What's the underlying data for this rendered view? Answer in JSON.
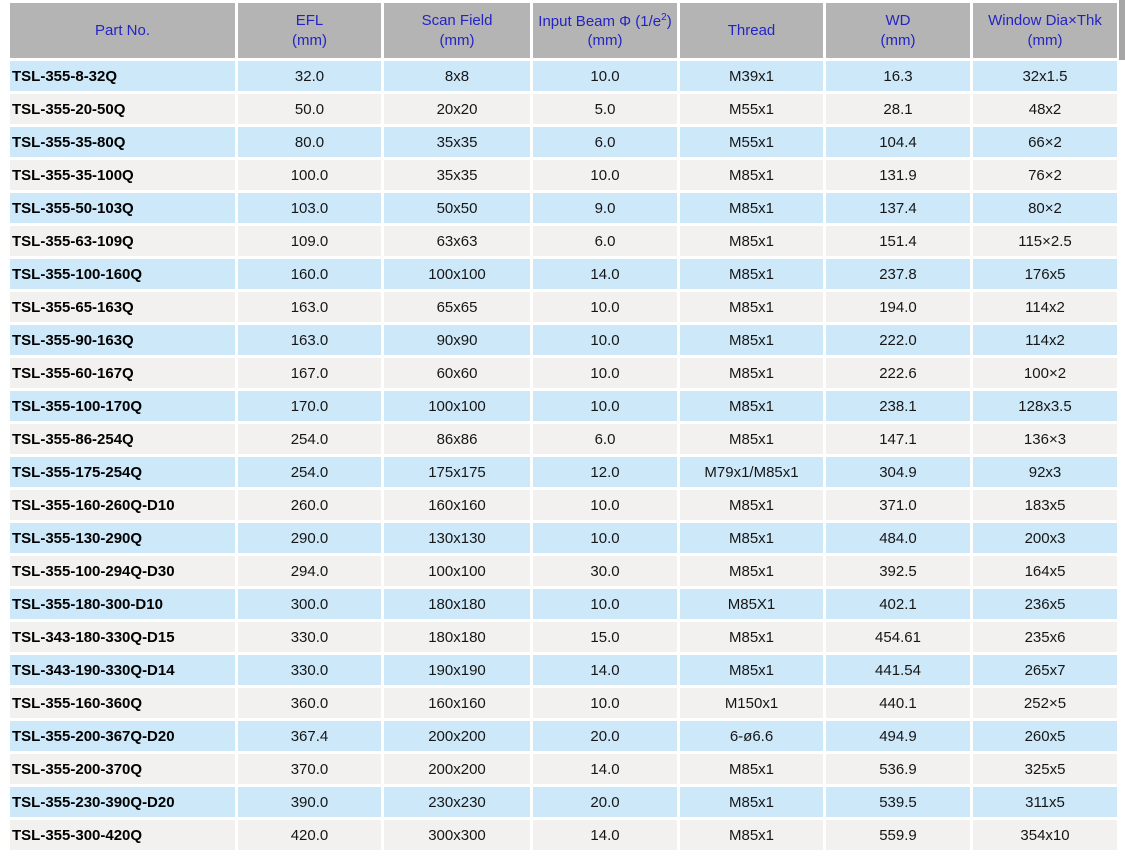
{
  "colors": {
    "header_bg": "#b4b4b4",
    "header_text": "#2424c4",
    "row_blue": "#cde8f9",
    "row_gray": "#f2f1ef",
    "body_text": "#161616",
    "page_bg": "#ffffff",
    "corner_block": "#a6a6a6"
  },
  "chart_data": {
    "type": "table",
    "title": "",
    "columns": [
      {
        "main": "Part No.",
        "sub": ""
      },
      {
        "main": "EFL",
        "sub": "(mm)"
      },
      {
        "main": "Scan Field",
        "sub": "(mm)"
      },
      {
        "main": "Input Beam Φ (1/e²)",
        "sub": "(mm)",
        "sup_split": {
          "pre": "Input Beam Φ (1/e",
          "sup": "2",
          "post": ")"
        }
      },
      {
        "main": "Thread",
        "sub": ""
      },
      {
        "main": "WD",
        "sub": "(mm)"
      },
      {
        "main": "Window Dia×Thk",
        "sub": "(mm)"
      }
    ],
    "rows": [
      {
        "part_no": "TSL-355-8-32Q",
        "efl": "32.0",
        "scan_field": "8x8",
        "input_beam": "10.0",
        "thread": "M39x1",
        "wd": "16.3",
        "window_dia_thk": "32x1.5"
      },
      {
        "part_no": "TSL-355-20-50Q",
        "efl": "50.0",
        "scan_field": "20x20",
        "input_beam": "5.0",
        "thread": "M55x1",
        "wd": "28.1",
        "window_dia_thk": "48x2"
      },
      {
        "part_no": "TSL-355-35-80Q",
        "efl": "80.0",
        "scan_field": "35x35",
        "input_beam": "6.0",
        "thread": "M55x1",
        "wd": "104.4",
        "window_dia_thk": "66×2"
      },
      {
        "part_no": "TSL-355-35-100Q",
        "efl": "100.0",
        "scan_field": "35x35",
        "input_beam": "10.0",
        "thread": "M85x1",
        "wd": "131.9",
        "window_dia_thk": "76×2"
      },
      {
        "part_no": "TSL-355-50-103Q",
        "efl": "103.0",
        "scan_field": "50x50",
        "input_beam": "9.0",
        "thread": "M85x1",
        "wd": "137.4",
        "window_dia_thk": "80×2"
      },
      {
        "part_no": "TSL-355-63-109Q",
        "efl": "109.0",
        "scan_field": "63x63",
        "input_beam": "6.0",
        "thread": "M85x1",
        "wd": "151.4",
        "window_dia_thk": "115×2.5"
      },
      {
        "part_no": "TSL-355-100-160Q",
        "efl": "160.0",
        "scan_field": "100x100",
        "input_beam": "14.0",
        "thread": "M85x1",
        "wd": "237.8",
        "window_dia_thk": "176x5"
      },
      {
        "part_no": "TSL-355-65-163Q",
        "efl": "163.0",
        "scan_field": "65x65",
        "input_beam": "10.0",
        "thread": "M85x1",
        "wd": "194.0",
        "window_dia_thk": "114x2"
      },
      {
        "part_no": "TSL-355-90-163Q",
        "efl": "163.0",
        "scan_field": "90x90",
        "input_beam": "10.0",
        "thread": "M85x1",
        "wd": "222.0",
        "window_dia_thk": "114x2"
      },
      {
        "part_no": "TSL-355-60-167Q",
        "efl": "167.0",
        "scan_field": "60x60",
        "input_beam": "10.0",
        "thread": "M85x1",
        "wd": "222.6",
        "window_dia_thk": "100×2"
      },
      {
        "part_no": "TSL-355-100-170Q",
        "efl": "170.0",
        "scan_field": "100x100",
        "input_beam": "10.0",
        "thread": "M85x1",
        "wd": "238.1",
        "window_dia_thk": "128x3.5"
      },
      {
        "part_no": "TSL-355-86-254Q",
        "efl": "254.0",
        "scan_field": "86x86",
        "input_beam": "6.0",
        "thread": "M85x1",
        "wd": "147.1",
        "window_dia_thk": "136×3"
      },
      {
        "part_no": "TSL-355-175-254Q",
        "efl": "254.0",
        "scan_field": "175x175",
        "input_beam": "12.0",
        "thread": "M79x1/M85x1",
        "wd": "304.9",
        "window_dia_thk": "92x3"
      },
      {
        "part_no": "TSL-355-160-260Q-D10",
        "efl": "260.0",
        "scan_field": "160x160",
        "input_beam": "10.0",
        "thread": "M85x1",
        "wd": "371.0",
        "window_dia_thk": "183x5"
      },
      {
        "part_no": "TSL-355-130-290Q",
        "efl": "290.0",
        "scan_field": "130x130",
        "input_beam": "10.0",
        "thread": "M85x1",
        "wd": "484.0",
        "window_dia_thk": "200x3"
      },
      {
        "part_no": "TSL-355-100-294Q-D30",
        "efl": "294.0",
        "scan_field": "100x100",
        "input_beam": "30.0",
        "thread": "M85x1",
        "wd": "392.5",
        "window_dia_thk": "164x5"
      },
      {
        "part_no": "TSL-355-180-300-D10",
        "efl": "300.0",
        "scan_field": "180x180",
        "input_beam": "10.0",
        "thread": "M85X1",
        "wd": "402.1",
        "window_dia_thk": "236x5"
      },
      {
        "part_no": "TSL-343-180-330Q-D15",
        "efl": "330.0",
        "scan_field": "180x180",
        "input_beam": "15.0",
        "thread": "M85x1",
        "wd": "454.61",
        "window_dia_thk": "235x6"
      },
      {
        "part_no": "TSL-343-190-330Q-D14",
        "efl": "330.0",
        "scan_field": "190x190",
        "input_beam": "14.0",
        "thread": "M85x1",
        "wd": "441.54",
        "window_dia_thk": "265x7"
      },
      {
        "part_no": "TSL-355-160-360Q",
        "efl": "360.0",
        "scan_field": "160x160",
        "input_beam": "10.0",
        "thread": "M150x1",
        "wd": "440.1",
        "window_dia_thk": "252×5"
      },
      {
        "part_no": "TSL-355-200-367Q-D20",
        "efl": "367.4",
        "scan_field": "200x200",
        "input_beam": "20.0",
        "thread": "6-ø6.6",
        "wd": "494.9",
        "window_dia_thk": "260x5"
      },
      {
        "part_no": "TSL-355-200-370Q",
        "efl": "370.0",
        "scan_field": "200x200",
        "input_beam": "14.0",
        "thread": "M85x1",
        "wd": "536.9",
        "window_dia_thk": "325x5"
      },
      {
        "part_no": "TSL-355-230-390Q-D20",
        "efl": "390.0",
        "scan_field": "230x230",
        "input_beam": "20.0",
        "thread": "M85x1",
        "wd": "539.5",
        "window_dia_thk": "311x5"
      },
      {
        "part_no": "TSL-355-300-420Q",
        "efl": "420.0",
        "scan_field": "300x300",
        "input_beam": "14.0",
        "thread": "M85x1",
        "wd": "559.9",
        "window_dia_thk": "354x10"
      }
    ]
  }
}
